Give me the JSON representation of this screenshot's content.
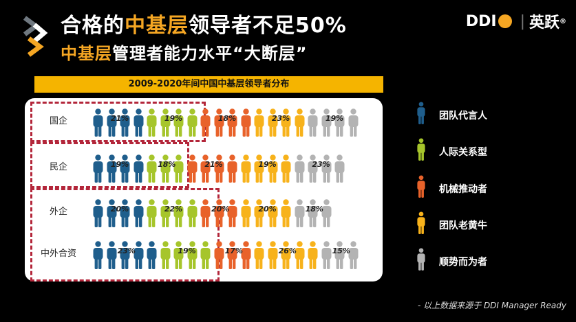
{
  "header": {
    "title_prefix": "合格的",
    "title_accent": "中基层",
    "title_suffix": "领导者不足50%",
    "subtitle_accent": "中基层",
    "subtitle_rest": "管理者能力水平“大断层”"
  },
  "brand": {
    "ddi": "DDI",
    "separator": "|",
    "cn_name": "英跃",
    "reg_mark": "®"
  },
  "banner_title": "2009-2020年间中国中基层领导者分布",
  "source_note": "- 以上数据来源于 DDI Manager Ready",
  "colors": {
    "blue": "#1f5e8c",
    "green": "#a6c52b",
    "orange": "#e8622a",
    "yellow": "#f7b21b",
    "gray": "#b3b3b3",
    "dash": "#b3263a",
    "accent": "#f5a623"
  },
  "chart_data": {
    "type": "bar",
    "title": "2009-2020年间中国中基层领导者分布",
    "categories": [
      "国企",
      "民企",
      "外企",
      "中外合资"
    ],
    "series": [
      {
        "name": "团队代言人",
        "color": "#1f5e8c",
        "values": [
          21,
          19,
          20,
          23
        ],
        "labels": [
          "21%",
          "19%",
          "20%",
          "23%"
        ]
      },
      {
        "name": "人际关系型",
        "color": "#a6c52b",
        "values": [
          19,
          18,
          22,
          19
        ],
        "labels": [
          "19%",
          "18%",
          "22%",
          "19%"
        ]
      },
      {
        "name": "机械推动者",
        "color": "#e8622a",
        "values": [
          18,
          21,
          20,
          17
        ],
        "labels": [
          "18%",
          "21%",
          "20%",
          "17%"
        ]
      },
      {
        "name": "团队老黄牛",
        "color": "#f7b21b",
        "values": [
          23,
          19,
          20,
          26
        ],
        "labels": [
          "23%",
          "19%",
          "20%",
          "26%"
        ]
      },
      {
        "name": "顺势而为者",
        "color": "#b3b3b3",
        "values": [
          19,
          23,
          18,
          15
        ],
        "labels": [
          "19%",
          "23%",
          "18%",
          "15%"
        ]
      }
    ],
    "icon_counts": [
      [
        4,
        4,
        4,
        4,
        4
      ],
      [
        4,
        3,
        4,
        4,
        4
      ],
      [
        4,
        4,
        3,
        4,
        3
      ],
      [
        5,
        4,
        3,
        5,
        3
      ]
    ],
    "dashed_highlight_series_count": 2
  }
}
